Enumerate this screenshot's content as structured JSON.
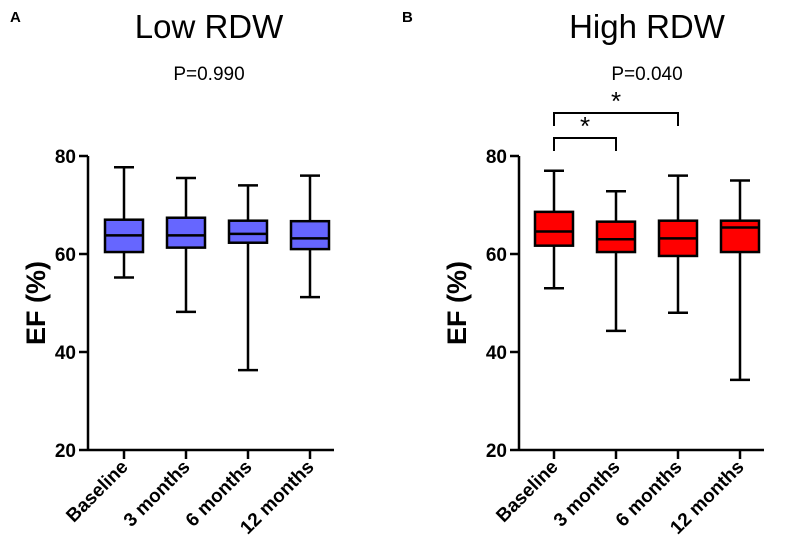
{
  "chart_data": [
    {
      "type": "box",
      "panel_label": "A",
      "title": "Low RDW",
      "annotation": "P=0.990",
      "ylabel": "EF (%)",
      "xlabel": "",
      "ylim": [
        20,
        80
      ],
      "yticks": [
        20,
        40,
        60,
        80
      ],
      "categories": [
        "Baseline",
        "3 months",
        "6 months",
        "12 months"
      ],
      "color": "#6666ff",
      "boxes": [
        {
          "category": "Baseline",
          "min": 55.2,
          "q1": 60.4,
          "median": 63.8,
          "q3": 67.0,
          "max": 77.7
        },
        {
          "category": "3 months",
          "min": 48.2,
          "q1": 61.3,
          "median": 63.8,
          "q3": 67.4,
          "max": 75.5
        },
        {
          "category": "6 months",
          "min": 36.3,
          "q1": 62.3,
          "median": 64.1,
          "q3": 66.8,
          "max": 74.0
        },
        {
          "category": "12 months",
          "min": 51.2,
          "q1": 61.0,
          "median": 63.2,
          "q3": 66.7,
          "max": 76.0
        }
      ],
      "significance": []
    },
    {
      "type": "box",
      "panel_label": "B",
      "title": "High RDW",
      "annotation": "P=0.040",
      "ylabel": "EF (%)",
      "xlabel": "",
      "ylim": [
        20,
        80
      ],
      "yticks": [
        20,
        40,
        60,
        80
      ],
      "categories": [
        "Baseline",
        "3 months",
        "6 months",
        "12 months"
      ],
      "color": "#ff0000",
      "boxes": [
        {
          "category": "Baseline",
          "min": 53.0,
          "q1": 61.7,
          "median": 64.6,
          "q3": 68.6,
          "max": 77.0
        },
        {
          "category": "3 months",
          "min": 44.3,
          "q1": 60.4,
          "median": 63.0,
          "q3": 66.6,
          "max": 72.8
        },
        {
          "category": "6 months",
          "min": 48.0,
          "q1": 59.6,
          "median": 63.2,
          "q3": 66.8,
          "max": 76.0
        },
        {
          "category": "12 months",
          "min": 34.3,
          "q1": 60.4,
          "median": 65.4,
          "q3": 66.8,
          "max": 75.0
        }
      ],
      "significance": [
        {
          "from": "Baseline",
          "to": "3 months",
          "label": "*",
          "level": 1
        },
        {
          "from": "Baseline",
          "to": "6 months",
          "label": "*",
          "level": 2
        }
      ]
    }
  ]
}
